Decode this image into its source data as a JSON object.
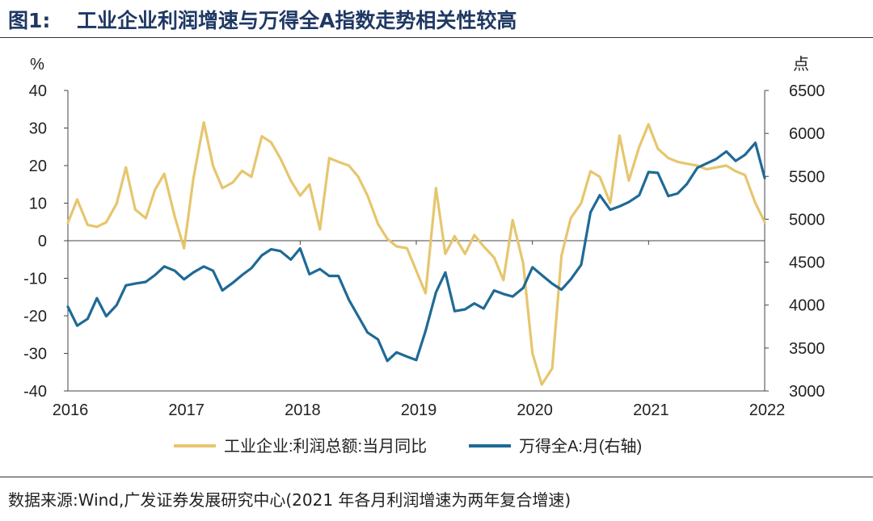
{
  "header": {
    "figure_label": "图1:",
    "figure_title": "工业企业利润增速与万得全A指数走势相关性较高"
  },
  "source": {
    "text": "数据来源:Wind,广发证券发展研究中心(2021 年各月利润增速为两年复合增速)"
  },
  "colors": {
    "profit": "#e6c66e",
    "index": "#1f6a96"
  },
  "chart_data": {
    "type": "line",
    "title": "工业企业利润增速与万得全A指数走势相关性较高",
    "x_tick_labels": [
      "2016",
      "2017",
      "2018",
      "2019",
      "2020",
      "2021",
      "2022"
    ],
    "xlim": [
      2016.0,
      2022.0
    ],
    "y_left": {
      "label": "%",
      "ylim": [
        -40,
        40
      ],
      "ticks": [
        40,
        30,
        20,
        10,
        0,
        -10,
        -20,
        -30,
        -40
      ]
    },
    "y_right": {
      "label": "点",
      "ylim": [
        3000,
        6500
      ],
      "ticks": [
        6500,
        6000,
        5500,
        5000,
        4500,
        4000,
        3500,
        3000
      ]
    },
    "series": [
      {
        "name": "工业企业:利润总额:当月同比",
        "axis": "left",
        "color": "#e6c66e",
        "x": [
          2016.0,
          2016.08,
          2016.17,
          2016.25,
          2016.33,
          2016.42,
          2016.5,
          2016.58,
          2016.67,
          2016.75,
          2016.83,
          2016.92,
          2017.0,
          2017.08,
          2017.17,
          2017.25,
          2017.33,
          2017.42,
          2017.5,
          2017.58,
          2017.67,
          2017.75,
          2017.83,
          2017.92,
          2018.0,
          2018.08,
          2018.17,
          2018.25,
          2018.33,
          2018.42,
          2018.5,
          2018.58,
          2018.67,
          2018.75,
          2018.83,
          2018.92,
          2019.0,
          2019.08,
          2019.17,
          2019.25,
          2019.33,
          2019.42,
          2019.5,
          2019.58,
          2019.67,
          2019.75,
          2019.83,
          2019.92,
          2020.0,
          2020.08,
          2020.17,
          2020.25,
          2020.33,
          2020.42,
          2020.5,
          2020.58,
          2020.67,
          2020.75,
          2020.83,
          2020.92,
          2021.0,
          2021.08,
          2021.17,
          2021.25,
          2021.33,
          2021.42,
          2021.5,
          2021.58,
          2021.67,
          2021.75,
          2021.83,
          2021.92,
          2022.0
        ],
        "values": [
          4.8,
          11,
          4.2,
          3.7,
          4.9,
          9.9,
          19.5,
          8.3,
          6,
          13.6,
          17.8,
          6.4,
          -2,
          16.5,
          31.5,
          19.9,
          14,
          15.5,
          18.6,
          17,
          27.8,
          26.2,
          21.9,
          16,
          12,
          15,
          3,
          22,
          21,
          20,
          17,
          12,
          4.5,
          0.5,
          -1.5,
          -2,
          -8,
          -14,
          14,
          -3.5,
          1.2,
          -3.5,
          1.5,
          -1.5,
          -4.5,
          -10.5,
          5.5,
          -6,
          -30,
          -38.3,
          -34,
          -4,
          6,
          10,
          18.5,
          17,
          10,
          28,
          16,
          25,
          31,
          24.5,
          22,
          21,
          20.5,
          20,
          19,
          19.5,
          20,
          18.5,
          17.5,
          10,
          5
        ]
      },
      {
        "name": "万得全A:月(右轴)",
        "axis": "right",
        "color": "#1f6a96",
        "x": [
          2016.0,
          2016.08,
          2016.17,
          2016.25,
          2016.33,
          2016.42,
          2016.5,
          2016.58,
          2016.67,
          2016.75,
          2016.83,
          2016.92,
          2017.0,
          2017.08,
          2017.17,
          2017.25,
          2017.33,
          2017.42,
          2017.5,
          2017.58,
          2017.67,
          2017.75,
          2017.83,
          2017.92,
          2018.0,
          2018.08,
          2018.17,
          2018.25,
          2018.33,
          2018.42,
          2018.5,
          2018.58,
          2018.67,
          2018.75,
          2018.83,
          2018.92,
          2019.0,
          2019.08,
          2019.17,
          2019.25,
          2019.33,
          2019.42,
          2019.5,
          2019.58,
          2019.67,
          2019.75,
          2019.83,
          2019.92,
          2020.0,
          2020.08,
          2020.17,
          2020.25,
          2020.33,
          2020.42,
          2020.5,
          2020.58,
          2020.67,
          2020.75,
          2020.83,
          2020.92,
          2021.0,
          2021.08,
          2021.17,
          2021.25,
          2021.33,
          2021.42,
          2021.5,
          2021.58,
          2021.67,
          2021.75,
          2021.83,
          2021.92,
          2022.0
        ],
        "values": [
          3980,
          3760,
          3840,
          4080,
          3870,
          4000,
          4230,
          4250,
          4270,
          4350,
          4450,
          4400,
          4300,
          4380,
          4450,
          4400,
          4170,
          4260,
          4350,
          4430,
          4580,
          4650,
          4630,
          4530,
          4660,
          4360,
          4420,
          4340,
          4340,
          4060,
          3870,
          3680,
          3600,
          3350,
          3450,
          3400,
          3360,
          3700,
          4150,
          4380,
          3930,
          3950,
          4020,
          3960,
          4170,
          4130,
          4100,
          4200,
          4440,
          4350,
          4250,
          4180,
          4300,
          4470,
          5080,
          5280,
          5110,
          5150,
          5200,
          5280,
          5550,
          5540,
          5270,
          5300,
          5410,
          5600,
          5650,
          5700,
          5790,
          5680,
          5750,
          5890,
          5480
        ]
      }
    ]
  }
}
